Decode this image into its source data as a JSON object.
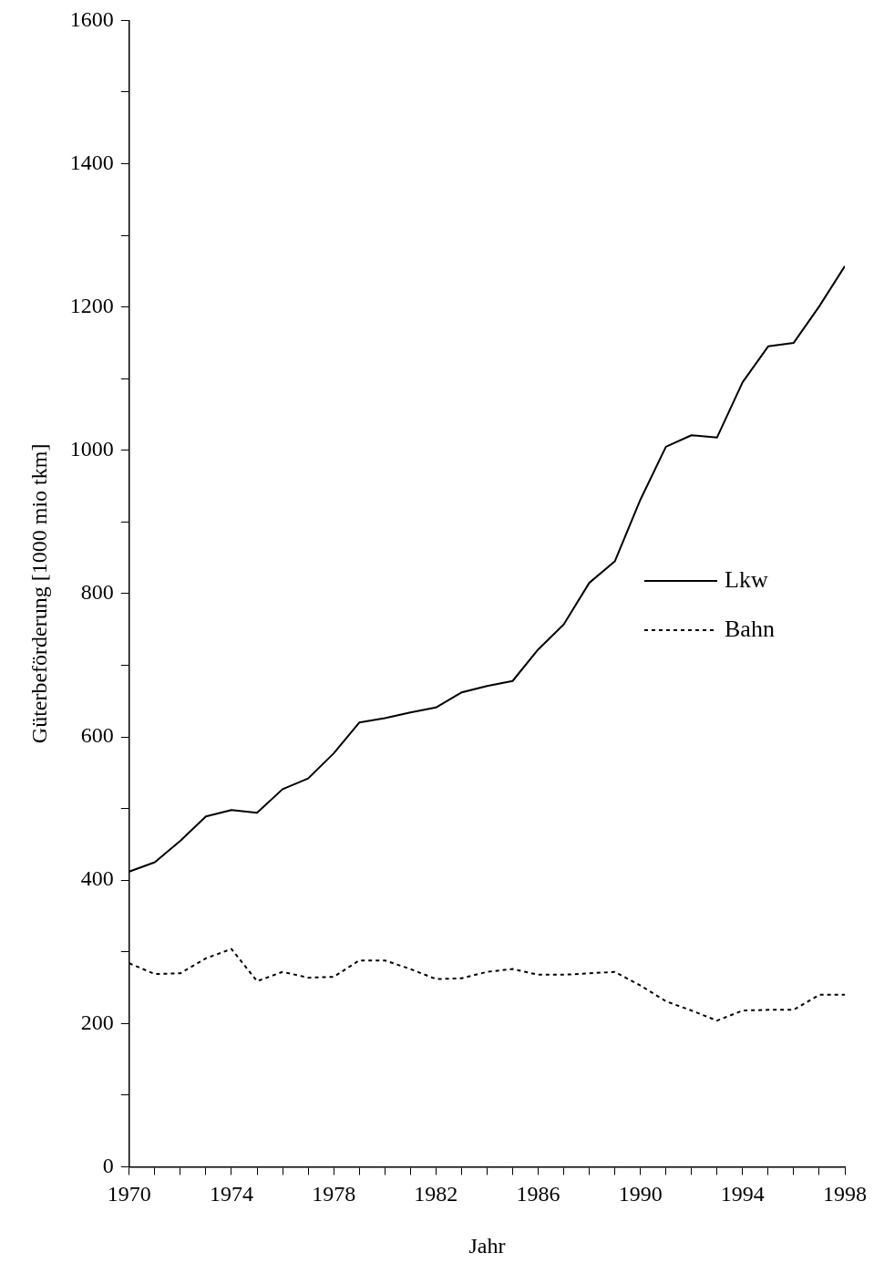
{
  "chart_data": {
    "type": "line",
    "xlabel": "Jahr",
    "ylabel": "Güterbeförderung [1000 mio tkm]",
    "x": [
      1970,
      1971,
      1972,
      1973,
      1974,
      1975,
      1976,
      1977,
      1978,
      1979,
      1980,
      1981,
      1982,
      1983,
      1984,
      1985,
      1986,
      1987,
      1988,
      1989,
      1990,
      1991,
      1992,
      1993,
      1994,
      1995,
      1996,
      1997,
      1998
    ],
    "series": [
      {
        "name": "Lkw",
        "color": "#000000",
        "line_style": "solid",
        "values": [
          412,
          425,
          455,
          489,
          498,
          494,
          527,
          542,
          577,
          620,
          626,
          634,
          641,
          662,
          671,
          678,
          722,
          757,
          815,
          845,
          931,
          1005,
          1021,
          1018,
          1095,
          1145,
          1150,
          1201,
          1257
        ]
      },
      {
        "name": "Bahn",
        "color": "#000000",
        "line_style": "dotted",
        "values": [
          284,
          269,
          270,
          291,
          304,
          259,
          272,
          264,
          265,
          288,
          288,
          276,
          262,
          263,
          272,
          276,
          268,
          268,
          270,
          272,
          253,
          231,
          218,
          204,
          218,
          219,
          219,
          240,
          240
        ]
      }
    ],
    "xlim": [
      1970,
      1998
    ],
    "xticks": [
      1970,
      {
        "value": 1971,
        "label": null
      },
      {
        "value": 1972,
        "label": null
      },
      {
        "value": 1973,
        "label": null
      },
      1974,
      {
        "value": 1975,
        "label": null
      },
      {
        "value": 1976,
        "label": null
      },
      {
        "value": 1977,
        "label": null
      },
      1978,
      {
        "value": 1979,
        "label": null
      },
      {
        "value": 1980,
        "label": null
      },
      {
        "value": 1981,
        "label": null
      },
      1982,
      {
        "value": 1983,
        "label": null
      },
      {
        "value": 1984,
        "label": null
      },
      {
        "value": 1985,
        "label": null
      },
      1986,
      {
        "value": 1987,
        "label": null
      },
      {
        "value": 1988,
        "label": null
      },
      {
        "value": 1989,
        "label": null
      },
      1990,
      {
        "value": 1991,
        "label": null
      },
      {
        "value": 1992,
        "label": null
      },
      {
        "value": 1993,
        "label": null
      },
      1994,
      {
        "value": 1995,
        "label": null
      },
      {
        "value": 1996,
        "label": null
      },
      {
        "value": 1997,
        "label": null
      },
      1998
    ],
    "ylim": [
      0,
      1600
    ],
    "yticks": [
      0,
      {
        "value": 100,
        "label": null
      },
      200,
      {
        "value": 300,
        "label": null
      },
      400,
      {
        "value": 500,
        "label": null
      },
      600,
      {
        "value": 700,
        "label": null
      },
      800,
      {
        "value": 900,
        "label": null
      },
      1000,
      {
        "value": 1100,
        "label": null
      },
      1200,
      {
        "value": 1300,
        "label": null
      },
      1400,
      {
        "value": 1500,
        "label": null
      },
      1600
    ],
    "grid": false,
    "legend": "right",
    "marker": "none"
  }
}
